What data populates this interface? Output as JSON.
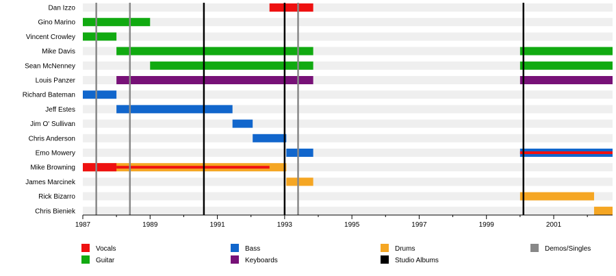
{
  "chart_data": {
    "type": "timeline",
    "members": [
      "Dan Izzo",
      "Gino Marino",
      "Vincent Crowley",
      "Mike Davis",
      "Sean McNenney",
      "Louis Panzer",
      "Richard Bateman",
      "Jeff Estes",
      "Jim O' Sullivan",
      "Chris Anderson",
      "Emo Mowery",
      "Mike Browning",
      "James Marcinek",
      "Rick Bizarro",
      "Chris Bieniek"
    ],
    "roles": {
      "Vocals": "#ee1111",
      "Guitar": "#11aa11",
      "Bass": "#1166cc",
      "Keyboards": "#771177",
      "Drums": "#f5a623",
      "Demos/Singles": "#888888",
      "Studio Albums": "#000000"
    },
    "bars": [
      {
        "member": "Dan Izzo",
        "role": "Vocals",
        "start": 1992.55,
        "end": 1993.85
      },
      {
        "member": "Gino Marino",
        "role": "Guitar",
        "start": 1987.0,
        "end": 1989.0
      },
      {
        "member": "Vincent Crowley",
        "role": "Guitar",
        "start": 1987.0,
        "end": 1988.0
      },
      {
        "member": "Mike Davis",
        "role": "Guitar",
        "start": 1988.0,
        "end": 1993.85
      },
      {
        "member": "Mike Davis",
        "role": "Guitar",
        "start": 2000.0,
        "end": 2002.75
      },
      {
        "member": "Sean McNenney",
        "role": "Guitar",
        "start": 1989.0,
        "end": 1993.85
      },
      {
        "member": "Sean McNenney",
        "role": "Guitar",
        "start": 2000.0,
        "end": 2002.75
      },
      {
        "member": "Louis Panzer",
        "role": "Keyboards",
        "start": 1988.0,
        "end": 1993.85
      },
      {
        "member": "Louis Panzer",
        "role": "Keyboards",
        "start": 2000.0,
        "end": 2002.75
      },
      {
        "member": "Richard Bateman",
        "role": "Bass",
        "start": 1987.0,
        "end": 1988.0
      },
      {
        "member": "Jeff Estes",
        "role": "Bass",
        "start": 1988.0,
        "end": 1991.45
      },
      {
        "member": "Jim O' Sullivan",
        "role": "Bass",
        "start": 1991.45,
        "end": 1992.05
      },
      {
        "member": "Chris Anderson",
        "role": "Bass",
        "start": 1992.05,
        "end": 1993.05
      },
      {
        "member": "Emo Mowery",
        "role": "Bass",
        "start": 1993.05,
        "end": 1993.85
      },
      {
        "member": "Emo Mowery",
        "role": "Bass",
        "start": 2000.0,
        "end": 2002.75
      },
      {
        "member": "Emo Mowery",
        "role": "Vocals",
        "start": 2000.0,
        "end": 2002.75,
        "thin": true
      },
      {
        "member": "Mike Browning",
        "role": "Drums",
        "start": 1987.0,
        "end": 1993.05
      },
      {
        "member": "Mike Browning",
        "role": "Vocals",
        "start": 1987.0,
        "end": 1988.0
      },
      {
        "member": "Mike Browning",
        "role": "Vocals",
        "start": 1988.0,
        "end": 1992.55,
        "thin": true
      },
      {
        "member": "James Marcinek",
        "role": "Drums",
        "start": 1993.05,
        "end": 1993.85
      },
      {
        "member": "Rick Bizarro",
        "role": "Drums",
        "start": 2000.0,
        "end": 2002.2
      },
      {
        "member": "Chris Bieniek",
        "role": "Drums",
        "start": 2002.2,
        "end": 2002.75
      }
    ],
    "events": [
      {
        "type": "Demos/Singles",
        "year": 1987.4
      },
      {
        "type": "Demos/Singles",
        "year": 1988.4
      },
      {
        "type": "Studio Albums",
        "year": 1990.6
      },
      {
        "type": "Studio Albums",
        "year": 1993.0
      },
      {
        "type": "Demos/Singles",
        "year": 1993.4
      },
      {
        "type": "Studio Albums",
        "year": 2000.1
      }
    ],
    "xlim": [
      1987,
      2002.75
    ],
    "xticks": [
      "1987",
      "1989",
      "1991",
      "1993",
      "1995",
      "1997",
      "1999",
      "2001"
    ],
    "legend": [
      {
        "label": "Vocals",
        "role": "Vocals"
      },
      {
        "label": "Guitar",
        "role": "Guitar"
      },
      {
        "label": "Bass",
        "role": "Bass"
      },
      {
        "label": "Keyboards",
        "role": "Keyboards"
      },
      {
        "label": "Drums",
        "role": "Drums"
      },
      {
        "label": "Studio Albums",
        "role": "Studio Albums"
      },
      {
        "label": "Demos/Singles",
        "role": "Demos/Singles"
      }
    ],
    "legend_placement": "bottom",
    "grid": false
  }
}
